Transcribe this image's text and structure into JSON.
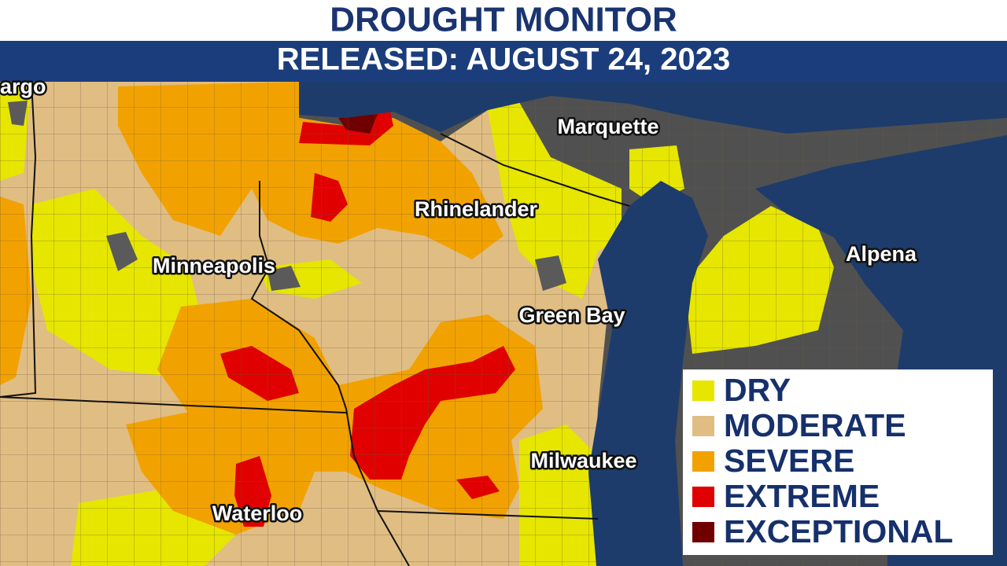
{
  "header": {
    "title": "DROUGHT MONITOR",
    "subtitle": "RELEASED: AUGUST 24, 2023"
  },
  "cities": [
    {
      "label": "argo"
    },
    {
      "label": "Marquette"
    },
    {
      "label": "Rhinelander"
    },
    {
      "label": "Minneapolis"
    },
    {
      "label": "Alpena"
    },
    {
      "label": "Green Bay"
    },
    {
      "label": "Milwaukee"
    },
    {
      "label": "Waterloo"
    }
  ],
  "legend": [
    {
      "label": "DRY",
      "color": "#e6e600"
    },
    {
      "label": "MODERATE",
      "color": "#e0bd83"
    },
    {
      "label": "SEVERE",
      "color": "#f2a200"
    },
    {
      "label": "EXTREME",
      "color": "#e00000"
    },
    {
      "label": "EXCEPTIONAL",
      "color": "#700000"
    }
  ]
}
